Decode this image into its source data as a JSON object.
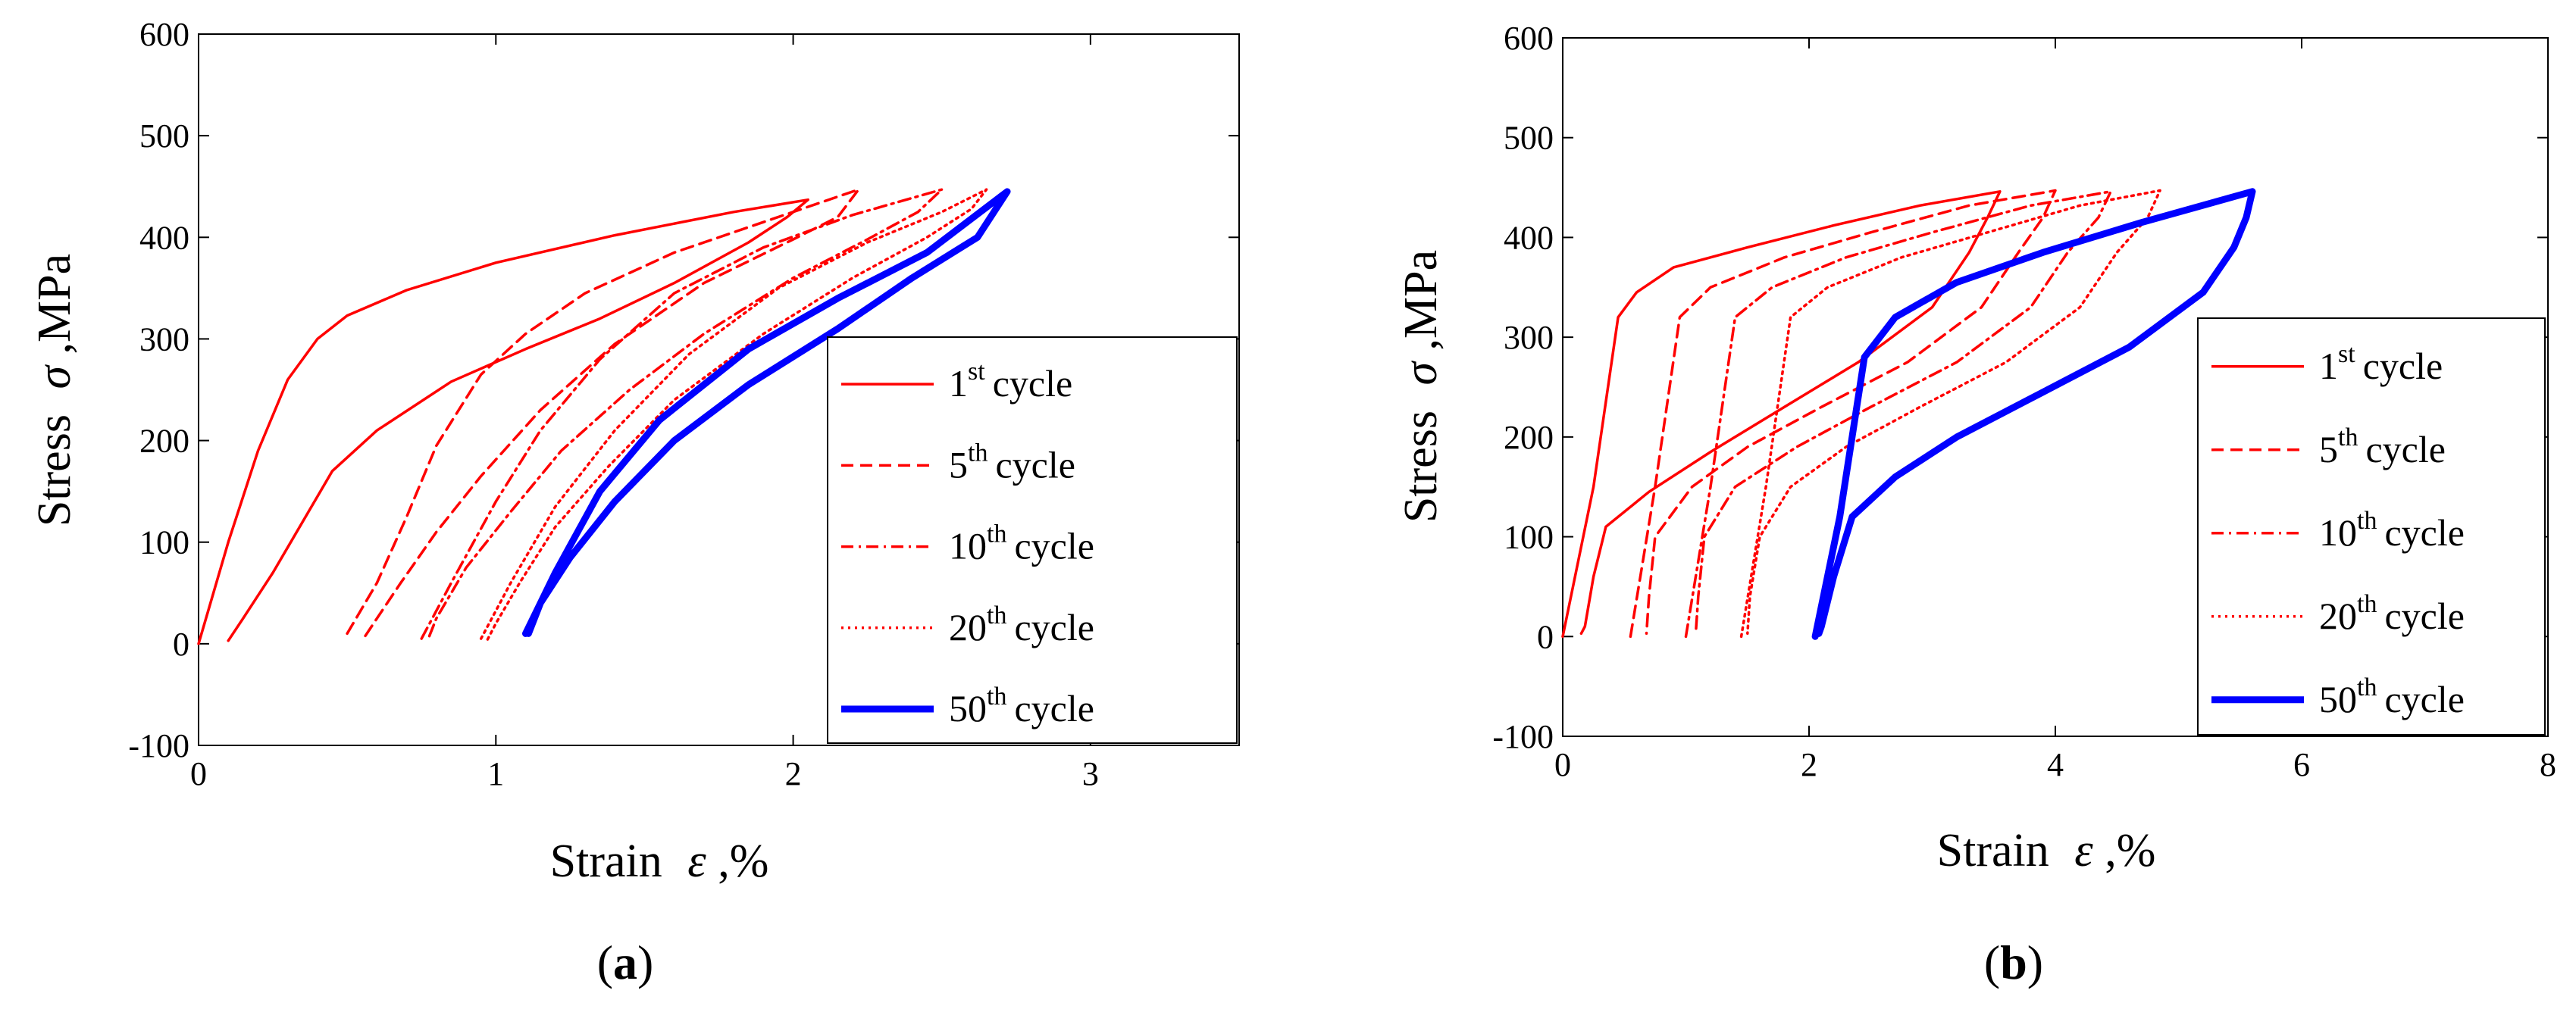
{
  "chart_data": [
    {
      "type": "line",
      "panel": "a",
      "caption": {
        "open": "(",
        "label": "a",
        "close": ")"
      },
      "xlabel": {
        "text": "Strain",
        "sym": "ε",
        "unit": ",%"
      },
      "ylabel": {
        "text": "Stress",
        "sym": "σ",
        "unit": ",MPa"
      },
      "xlim": [
        0,
        3.5
      ],
      "ylim": [
        -100,
        600
      ],
      "xticks": [
        "0",
        "1",
        "2",
        "3"
      ],
      "xtick_values": [
        0,
        1,
        2,
        3
      ],
      "yticks": [
        "-100",
        "0",
        "100",
        "200",
        "300",
        "400",
        "500",
        "600"
      ],
      "ytick_values": [
        -100,
        0,
        100,
        200,
        300,
        400,
        500,
        600
      ],
      "legend_position": "lower-right",
      "series": [
        {
          "name": "1st cycle",
          "num": "1",
          "sup": "st",
          "word": "cycle",
          "color": "#ff0000",
          "style": "solid",
          "values": [
            [
              0,
              0
            ],
            [
              0.1,
              100
            ],
            [
              0.2,
              190
            ],
            [
              0.3,
              260
            ],
            [
              0.4,
              300
            ],
            [
              0.5,
              323
            ],
            [
              0.7,
              348
            ],
            [
              1.0,
              375
            ],
            [
              1.4,
              402
            ],
            [
              1.8,
              425
            ],
            [
              2.05,
              437
            ],
            [
              1.98,
              420
            ],
            [
              1.85,
              395
            ],
            [
              1.6,
              355
            ],
            [
              1.35,
              320
            ],
            [
              1.1,
              290
            ],
            [
              0.85,
              258
            ],
            [
              0.6,
              210
            ],
            [
              0.45,
              170
            ],
            [
              0.35,
              120
            ],
            [
              0.25,
              70
            ],
            [
              0.15,
              25
            ],
            [
              0.1,
              3
            ]
          ]
        },
        {
          "name": "5th cycle",
          "num": "5",
          "sup": "th",
          "word": "cycle",
          "color": "#ff0000",
          "style": "dashed",
          "values": [
            [
              0.5,
              10
            ],
            [
              0.6,
              60
            ],
            [
              0.7,
              125
            ],
            [
              0.8,
              195
            ],
            [
              0.95,
              265
            ],
            [
              1.1,
              305
            ],
            [
              1.3,
              345
            ],
            [
              1.6,
              385
            ],
            [
              1.9,
              415
            ],
            [
              2.22,
              447
            ],
            [
              2.15,
              420
            ],
            [
              2.0,
              398
            ],
            [
              1.7,
              355
            ],
            [
              1.4,
              295
            ],
            [
              1.15,
              230
            ],
            [
              0.95,
              165
            ],
            [
              0.8,
              110
            ],
            [
              0.68,
              60
            ],
            [
              0.6,
              25
            ],
            [
              0.55,
              3
            ]
          ]
        },
        {
          "name": "10th cycle",
          "num": "10",
          "sup": "th",
          "word": "cycle",
          "color": "#ff0000",
          "style": "dashdot",
          "values": [
            [
              0.75,
              5
            ],
            [
              0.85,
              60
            ],
            [
              1.0,
              140
            ],
            [
              1.15,
              210
            ],
            [
              1.35,
              280
            ],
            [
              1.6,
              345
            ],
            [
              1.9,
              390
            ],
            [
              2.2,
              422
            ],
            [
              2.5,
              447
            ],
            [
              2.42,
              425
            ],
            [
              2.25,
              398
            ],
            [
              2.0,
              360
            ],
            [
              1.7,
              305
            ],
            [
              1.45,
              250
            ],
            [
              1.22,
              190
            ],
            [
              1.05,
              130
            ],
            [
              0.9,
              75
            ],
            [
              0.8,
              25
            ],
            [
              0.77,
              3
            ]
          ]
        },
        {
          "name": "20th cycle",
          "num": "20",
          "sup": "th",
          "word": "cycle",
          "color": "#ff0000",
          "style": "dotted",
          "values": [
            [
              0.95,
              5
            ],
            [
              1.05,
              60
            ],
            [
              1.2,
              135
            ],
            [
              1.4,
              210
            ],
            [
              1.65,
              285
            ],
            [
              1.95,
              350
            ],
            [
              2.25,
              395
            ],
            [
              2.5,
              425
            ],
            [
              2.65,
              447
            ],
            [
              2.6,
              428
            ],
            [
              2.45,
              400
            ],
            [
              2.2,
              360
            ],
            [
              1.9,
              305
            ],
            [
              1.6,
              240
            ],
            [
              1.38,
              175
            ],
            [
              1.2,
              115
            ],
            [
              1.08,
              60
            ],
            [
              1.0,
              20
            ],
            [
              0.97,
              3
            ]
          ]
        },
        {
          "name": "50th cycle",
          "num": "50",
          "sup": "th",
          "word": "cycle",
          "color": "#0000ff",
          "style": "thick",
          "values": [
            [
              1.1,
              10
            ],
            [
              1.2,
              70
            ],
            [
              1.35,
              150
            ],
            [
              1.55,
              220
            ],
            [
              1.85,
              290
            ],
            [
              2.15,
              340
            ],
            [
              2.45,
              385
            ],
            [
              2.72,
              445
            ],
            [
              2.62,
              400
            ],
            [
              2.4,
              360
            ],
            [
              2.15,
              310
            ],
            [
              1.85,
              255
            ],
            [
              1.6,
              200
            ],
            [
              1.4,
              140
            ],
            [
              1.25,
              85
            ],
            [
              1.15,
              40
            ],
            [
              1.11,
              10
            ]
          ]
        }
      ]
    },
    {
      "type": "line",
      "panel": "b",
      "caption": {
        "open": "(",
        "label": "b",
        "close": ")"
      },
      "xlabel": {
        "text": "Strain",
        "sym": "ε",
        "unit": ",%"
      },
      "ylabel": {
        "text": "Stress",
        "sym": "σ",
        "unit": ",MPa"
      },
      "xlim": [
        0,
        8
      ],
      "ylim": [
        -100,
        600
      ],
      "xticks": [
        "0",
        "2",
        "4",
        "6",
        "8"
      ],
      "xtick_values": [
        0,
        2,
        4,
        6,
        8
      ],
      "yticks": [
        "-100",
        "0",
        "100",
        "200",
        "300",
        "400",
        "500",
        "600"
      ],
      "ytick_values": [
        -100,
        0,
        100,
        200,
        300,
        400,
        500,
        600
      ],
      "legend_position": "lower-right",
      "series": [
        {
          "name": "1st cycle",
          "num": "1",
          "sup": "st",
          "word": "cycle",
          "color": "#ff0000",
          "style": "solid",
          "values": [
            [
              0,
              0
            ],
            [
              0.25,
              150
            ],
            [
              0.45,
              320
            ],
            [
              0.6,
              345
            ],
            [
              0.9,
              370
            ],
            [
              1.5,
              390
            ],
            [
              2.2,
              412
            ],
            [
              2.9,
              432
            ],
            [
              3.55,
              446
            ],
            [
              3.45,
              420
            ],
            [
              3.3,
              385
            ],
            [
              3.0,
              330
            ],
            [
              2.4,
              275
            ],
            [
              1.8,
              230
            ],
            [
              1.2,
              185
            ],
            [
              0.7,
              145
            ],
            [
              0.35,
              110
            ],
            [
              0.25,
              60
            ],
            [
              0.18,
              10
            ],
            [
              0.15,
              3
            ]
          ]
        },
        {
          "name": "5th cycle",
          "num": "5",
          "sup": "th",
          "word": "cycle",
          "color": "#ff0000",
          "style": "dashed",
          "values": [
            [
              0.55,
              0
            ],
            [
              0.75,
              150
            ],
            [
              0.95,
              320
            ],
            [
              1.2,
              350
            ],
            [
              1.8,
              380
            ],
            [
              2.5,
              405
            ],
            [
              3.3,
              432
            ],
            [
              4.0,
              447
            ],
            [
              3.9,
              420
            ],
            [
              3.7,
              385
            ],
            [
              3.4,
              330
            ],
            [
              2.8,
              275
            ],
            [
              2.1,
              230
            ],
            [
              1.5,
              190
            ],
            [
              1.05,
              150
            ],
            [
              0.75,
              100
            ],
            [
              0.7,
              40
            ],
            [
              0.68,
              3
            ]
          ]
        },
        {
          "name": "10th cycle",
          "num": "10",
          "sup": "th",
          "word": "cycle",
          "color": "#ff0000",
          "style": "dashdot",
          "values": [
            [
              1.0,
              0
            ],
            [
              1.2,
              150
            ],
            [
              1.4,
              320
            ],
            [
              1.7,
              350
            ],
            [
              2.3,
              380
            ],
            [
              3.0,
              405
            ],
            [
              3.8,
              432
            ],
            [
              4.45,
              446
            ],
            [
              4.35,
              420
            ],
            [
              4.1,
              385
            ],
            [
              3.8,
              330
            ],
            [
              3.2,
              275
            ],
            [
              2.5,
              230
            ],
            [
              1.9,
              190
            ],
            [
              1.4,
              150
            ],
            [
              1.15,
              100
            ],
            [
              1.1,
              40
            ],
            [
              1.08,
              3
            ]
          ]
        },
        {
          "name": "20th cycle",
          "num": "20",
          "sup": "th",
          "word": "cycle",
          "color": "#ff0000",
          "style": "dotted",
          "values": [
            [
              1.45,
              0
            ],
            [
              1.65,
              150
            ],
            [
              1.85,
              320
            ],
            [
              2.15,
              350
            ],
            [
              2.75,
              380
            ],
            [
              3.45,
              405
            ],
            [
              4.2,
              432
            ],
            [
              4.85,
              447
            ],
            [
              4.75,
              420
            ],
            [
              4.5,
              385
            ],
            [
              4.2,
              330
            ],
            [
              3.6,
              275
            ],
            [
              2.9,
              230
            ],
            [
              2.3,
              190
            ],
            [
              1.85,
              150
            ],
            [
              1.6,
              100
            ],
            [
              1.52,
              40
            ],
            [
              1.5,
              3
            ]
          ]
        },
        {
          "name": "50th cycle",
          "num": "50",
          "sup": "th",
          "word": "cycle",
          "color": "#0000ff",
          "style": "thick",
          "values": [
            [
              2.05,
              0
            ],
            [
              2.25,
              120
            ],
            [
              2.45,
              280
            ],
            [
              2.7,
              320
            ],
            [
              3.2,
              355
            ],
            [
              3.9,
              385
            ],
            [
              4.7,
              415
            ],
            [
              5.6,
              446
            ],
            [
              5.55,
              420
            ],
            [
              5.45,
              390
            ],
            [
              5.2,
              345
            ],
            [
              4.6,
              290
            ],
            [
              3.9,
              245
            ],
            [
              3.2,
              200
            ],
            [
              2.7,
              160
            ],
            [
              2.35,
              120
            ],
            [
              2.2,
              60
            ],
            [
              2.1,
              10
            ],
            [
              2.08,
              3
            ]
          ]
        }
      ]
    }
  ]
}
